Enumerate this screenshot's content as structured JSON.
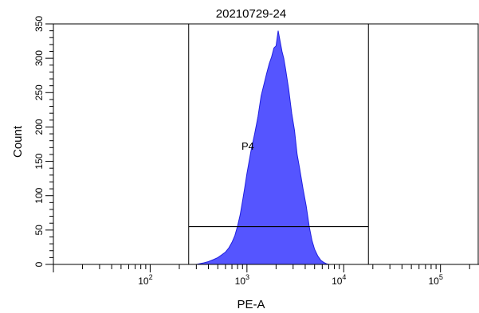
{
  "chart_data": {
    "type": "area",
    "title": "20210729-24",
    "xlabel": "PE-A",
    "ylabel": "Count",
    "x_scale": "log",
    "xlim": [
      10,
      250000
    ],
    "ylim": [
      0,
      350
    ],
    "y_ticks": [
      0,
      50,
      100,
      150,
      200,
      250,
      300,
      350
    ],
    "x_tick_labels": [
      "10^2",
      "10^3",
      "10^4",
      "10^5"
    ],
    "fill_color": "#5555ff",
    "outline_color": "#2020e0",
    "gate": {
      "name": "P4",
      "x_range": [
        250,
        18000
      ],
      "y_level": 55
    },
    "histogram": {
      "x": [
        300,
        350,
        400,
        450,
        500,
        550,
        600,
        650,
        700,
        750,
        800,
        850,
        900,
        950,
        1000,
        1100,
        1200,
        1300,
        1400,
        1500,
        1600,
        1700,
        1800,
        1900,
        2000,
        2100,
        2200,
        2300,
        2400,
        2500,
        2700,
        2900,
        3100,
        3300,
        3500,
        3800,
        4100,
        4400,
        4700,
        5000,
        5400,
        5800,
        6200,
        6600,
        7000
      ],
      "y": [
        0,
        2,
        4,
        7,
        10,
        14,
        18,
        24,
        32,
        42,
        56,
        72,
        92,
        112,
        132,
        165,
        190,
        215,
        245,
        262,
        278,
        292,
        302,
        315,
        318,
        340,
        325,
        310,
        300,
        285,
        255,
        220,
        195,
        160,
        140,
        110,
        85,
        55,
        35,
        22,
        12,
        6,
        3,
        1,
        0
      ]
    }
  }
}
